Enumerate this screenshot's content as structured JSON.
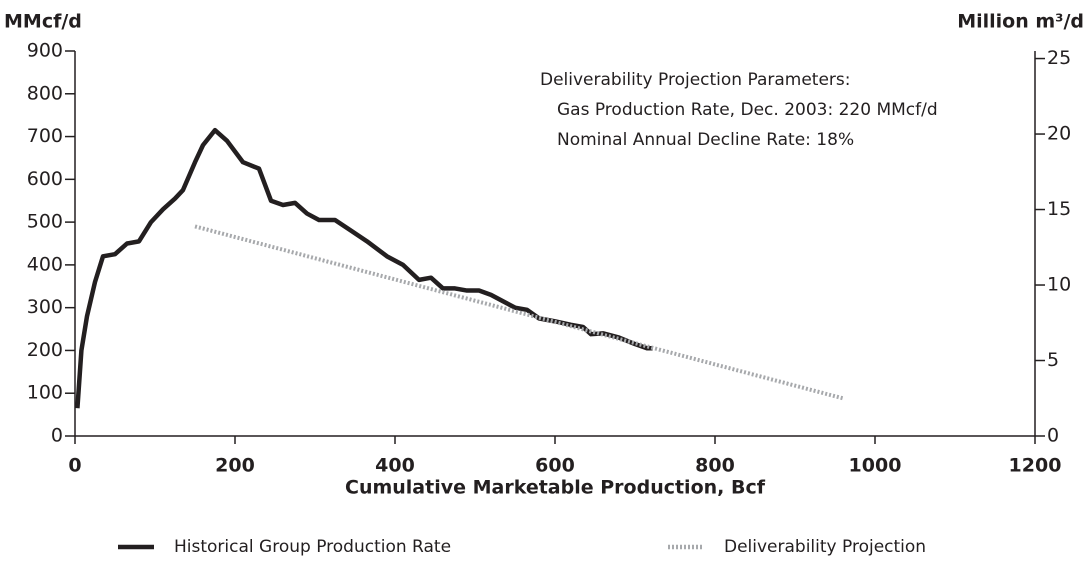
{
  "chart_data": {
    "type": "line",
    "y_label": "MMcf/d",
    "y2_label": "Million m³/d",
    "x_label": "Cumulative Marketable Production, Bcf",
    "annotations": [
      "Deliverability Projection Parameters:",
      "Gas Production Rate, Dec. 2003:  220 MMcf/d",
      "Nominal Annual Decline Rate: 18%"
    ],
    "xlim": [
      0,
      1200
    ],
    "xticks": [
      0,
      200,
      400,
      600,
      800,
      1000,
      1200
    ],
    "ylim": [
      0,
      900
    ],
    "yticks": [
      0,
      100,
      200,
      300,
      400,
      500,
      600,
      700,
      800,
      900
    ],
    "y2lim": [
      0,
      25.5
    ],
    "y2ticks": [
      0,
      5,
      10,
      15,
      20,
      25
    ],
    "series": [
      {
        "name": "Historical Group Production Rate",
        "color": "#231f20",
        "style": "solid",
        "x": [
          3,
          8,
          15,
          25,
          35,
          50,
          65,
          80,
          95,
          110,
          125,
          135,
          150,
          160,
          175,
          190,
          210,
          230,
          245,
          260,
          275,
          290,
          305,
          325,
          345,
          365,
          390,
          410,
          430,
          445,
          460,
          475,
          490,
          505,
          520,
          535,
          550,
          565,
          580,
          600,
          620,
          635,
          645,
          660,
          680,
          700,
          715,
          722
        ],
        "values": [
          65,
          200,
          280,
          360,
          420,
          425,
          450,
          455,
          500,
          530,
          555,
          575,
          640,
          680,
          715,
          690,
          640,
          625,
          550,
          540,
          545,
          520,
          505,
          505,
          480,
          455,
          420,
          400,
          365,
          370,
          345,
          345,
          340,
          340,
          330,
          315,
          300,
          295,
          275,
          268,
          260,
          255,
          238,
          240,
          230,
          215,
          205,
          205
        ]
      },
      {
        "name": "Deliverability Projection",
        "color": "#a7a9ac",
        "style": "dotted",
        "x": [
          150,
          960
        ],
        "values": [
          490,
          88
        ]
      }
    ]
  }
}
